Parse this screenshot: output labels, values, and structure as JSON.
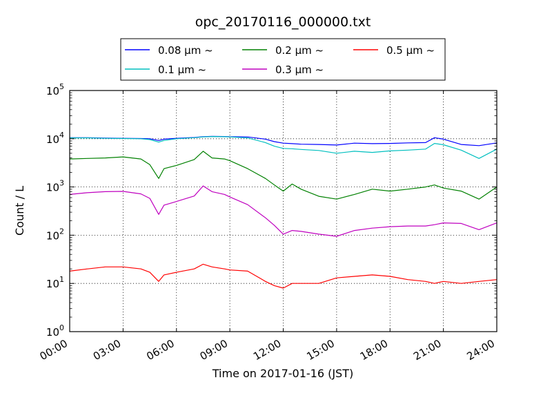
{
  "chart_data": {
    "type": "line",
    "title": "opc_20170116_000000.txt",
    "xlabel": "Time on 2017-01-16 (JST)",
    "ylabel": "Count / L",
    "x_unit": "hour",
    "xlim": [
      0,
      24
    ],
    "ylim": [
      1,
      100000
    ],
    "y_scale": "log",
    "grid": true,
    "legend_placement": "top",
    "x_ticks": [
      {
        "value": 0,
        "label": "00:00"
      },
      {
        "value": 3,
        "label": "03:00"
      },
      {
        "value": 6,
        "label": "06:00"
      },
      {
        "value": 9,
        "label": "09:00"
      },
      {
        "value": 12,
        "label": "12:00"
      },
      {
        "value": 15,
        "label": "15:00"
      },
      {
        "value": 18,
        "label": "18:00"
      },
      {
        "value": 21,
        "label": "21:00"
      },
      {
        "value": 24,
        "label": "24:00"
      }
    ],
    "y_ticks": [
      {
        "value": 1,
        "base": "10",
        "exp": "0"
      },
      {
        "value": 10,
        "base": "10",
        "exp": "1"
      },
      {
        "value": 100,
        "base": "10",
        "exp": "2"
      },
      {
        "value": 1000,
        "base": "10",
        "exp": "3"
      },
      {
        "value": 10000,
        "base": "10",
        "exp": "4"
      },
      {
        "value": 100000,
        "base": "10",
        "exp": "5"
      }
    ],
    "x": [
      0,
      1,
      2,
      3,
      4,
      4.5,
      5,
      5.3,
      6,
      7,
      7.5,
      8,
      8.7,
      9,
      10,
      11,
      11.5,
      12,
      12.5,
      13,
      14,
      15,
      16,
      17,
      18,
      19,
      20,
      20.5,
      21,
      22,
      23,
      24
    ],
    "series": [
      {
        "name": "0.08 μm ~",
        "color": "#0000ff",
        "values": [
          10500,
          10500,
          10300,
          10200,
          10100,
          10000,
          9200,
          9800,
          10200,
          10600,
          11000,
          11200,
          11100,
          11000,
          10900,
          9800,
          8700,
          8100,
          7900,
          7700,
          7600,
          7400,
          8100,
          7900,
          8000,
          8200,
          8300,
          10500,
          9800,
          7600,
          7200,
          8200
        ]
      },
      {
        "name": "0.1 μm ~",
        "color": "#00bfbf",
        "values": [
          10400,
          10400,
          10200,
          10100,
          10000,
          9600,
          8500,
          9200,
          10000,
          10500,
          10900,
          11100,
          11000,
          10900,
          10400,
          8300,
          7000,
          6300,
          6200,
          6000,
          5700,
          5000,
          5500,
          5200,
          5600,
          5800,
          6100,
          8000,
          7500,
          5800,
          3900,
          6100
        ]
      },
      {
        "name": "0.2 μm ~",
        "color": "#008000",
        "values": [
          3800,
          3900,
          4000,
          4200,
          3800,
          2900,
          1500,
          2400,
          2800,
          3700,
          5500,
          4000,
          3800,
          3500,
          2400,
          1500,
          1100,
          820,
          1150,
          900,
          640,
          560,
          700,
          900,
          820,
          900,
          1000,
          1100,
          950,
          820,
          560,
          1000
        ]
      },
      {
        "name": "0.3 μm ~",
        "color": "#bf00bf",
        "values": [
          700,
          760,
          800,
          810,
          720,
          580,
          270,
          420,
          500,
          650,
          1050,
          800,
          700,
          620,
          430,
          230,
          160,
          105,
          125,
          120,
          105,
          95,
          125,
          140,
          150,
          155,
          155,
          165,
          180,
          175,
          130,
          180
        ]
      },
      {
        "name": "0.5 μm ~",
        "color": "#ff0000",
        "values": [
          18,
          20,
          22,
          22,
          20,
          17,
          11,
          15,
          17,
          20,
          25,
          22,
          20,
          19,
          18,
          11,
          9,
          8,
          10,
          10,
          10,
          13,
          14,
          15,
          14,
          12,
          11,
          10,
          11,
          10,
          11,
          12
        ]
      }
    ]
  }
}
